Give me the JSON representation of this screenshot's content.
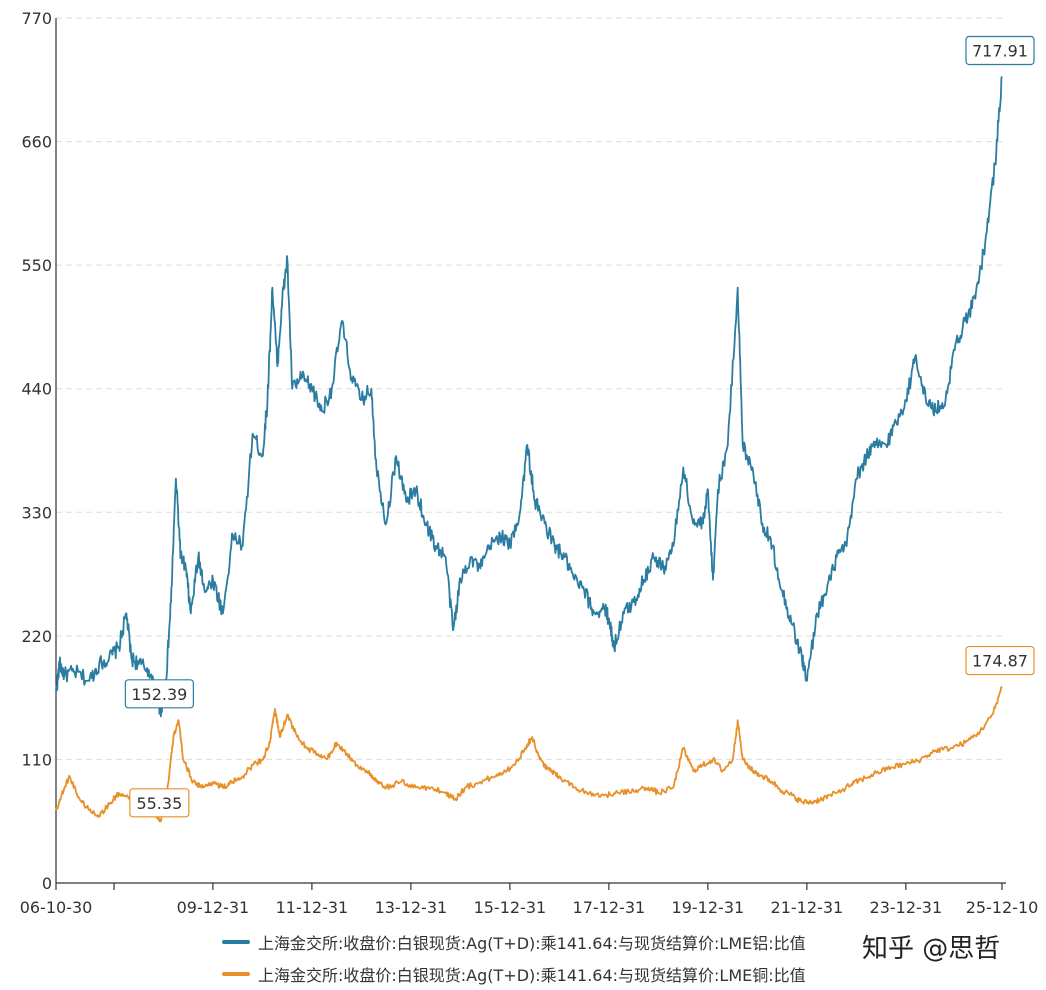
{
  "chart_data": {
    "type": "line",
    "title": "",
    "xlabel": "",
    "ylabel": "",
    "ylim": [
      0,
      770
    ],
    "yticks": [
      0,
      110,
      220,
      330,
      440,
      550,
      660,
      770
    ],
    "x_range": [
      "2006-10-30",
      "2025-12-10"
    ],
    "xticks": [
      {
        "label": "06-10-30",
        "date": "2006-10-30"
      },
      {
        "label": "",
        "date": "2008-01-01"
      },
      {
        "label": "09-12-31",
        "date": "2009-12-31"
      },
      {
        "label": "11-12-31",
        "date": "2011-12-31"
      },
      {
        "label": "13-12-31",
        "date": "2013-12-31"
      },
      {
        "label": "15-12-31",
        "date": "2015-12-31"
      },
      {
        "label": "17-12-31",
        "date": "2017-12-31"
      },
      {
        "label": "19-12-31",
        "date": "2019-12-31"
      },
      {
        "label": "21-12-31",
        "date": "2021-12-31"
      },
      {
        "label": "23-12-31",
        "date": "2023-12-31"
      },
      {
        "label": "25-12-10",
        "date": "2025-12-10"
      }
    ],
    "grid": true,
    "legend_position": "bottom",
    "series": [
      {
        "name": "上海金交所:收盘价:白银现货:Ag(T+D):乘141.64:与现货结算价:LME铝:比值",
        "color": "#2a7ca1",
        "points": [
          [
            2006.83,
            170
          ],
          [
            2006.9,
            195
          ],
          [
            2007.0,
            185
          ],
          [
            2007.2,
            188
          ],
          [
            2007.5,
            180
          ],
          [
            2007.7,
            195
          ],
          [
            2007.9,
            200
          ],
          [
            2008.1,
            210
          ],
          [
            2008.25,
            240
          ],
          [
            2008.35,
            200
          ],
          [
            2008.5,
            195
          ],
          [
            2008.7,
            190
          ],
          [
            2008.9,
            160
          ],
          [
            2008.95,
            152.39
          ],
          [
            2009.05,
            180
          ],
          [
            2009.15,
            250
          ],
          [
            2009.25,
            360
          ],
          [
            2009.35,
            290
          ],
          [
            2009.45,
            280
          ],
          [
            2009.55,
            240
          ],
          [
            2009.7,
            290
          ],
          [
            2009.85,
            260
          ],
          [
            2010.0,
            270
          ],
          [
            2010.2,
            240
          ],
          [
            2010.4,
            310
          ],
          [
            2010.6,
            300
          ],
          [
            2010.8,
            400
          ],
          [
            2011.0,
            380
          ],
          [
            2011.1,
            430
          ],
          [
            2011.2,
            530
          ],
          [
            2011.3,
            460
          ],
          [
            2011.4,
            520
          ],
          [
            2011.5,
            555
          ],
          [
            2011.6,
            440
          ],
          [
            2011.8,
            450
          ],
          [
            2012.0,
            440
          ],
          [
            2012.2,
            420
          ],
          [
            2012.4,
            440
          ],
          [
            2012.6,
            500
          ],
          [
            2012.8,
            450
          ],
          [
            2013.0,
            430
          ],
          [
            2013.2,
            440
          ],
          [
            2013.3,
            370
          ],
          [
            2013.5,
            320
          ],
          [
            2013.7,
            380
          ],
          [
            2013.9,
            340
          ],
          [
            2014.1,
            350
          ],
          [
            2014.3,
            320
          ],
          [
            2014.5,
            300
          ],
          [
            2014.7,
            290
          ],
          [
            2014.85,
            225
          ],
          [
            2015.0,
            270
          ],
          [
            2015.2,
            290
          ],
          [
            2015.4,
            280
          ],
          [
            2015.6,
            300
          ],
          [
            2015.8,
            310
          ],
          [
            2016.0,
            300
          ],
          [
            2016.2,
            330
          ],
          [
            2016.35,
            390
          ],
          [
            2016.5,
            340
          ],
          [
            2016.7,
            320
          ],
          [
            2016.9,
            300
          ],
          [
            2017.1,
            290
          ],
          [
            2017.3,
            270
          ],
          [
            2017.5,
            260
          ],
          [
            2017.7,
            240
          ],
          [
            2017.9,
            245
          ],
          [
            2018.0,
            235
          ],
          [
            2018.1,
            210
          ],
          [
            2018.3,
            240
          ],
          [
            2018.5,
            250
          ],
          [
            2018.7,
            270
          ],
          [
            2018.9,
            290
          ],
          [
            2019.1,
            280
          ],
          [
            2019.3,
            300
          ],
          [
            2019.5,
            370
          ],
          [
            2019.7,
            320
          ],
          [
            2019.9,
            320
          ],
          [
            2020.0,
            350
          ],
          [
            2020.1,
            270
          ],
          [
            2020.2,
            350
          ],
          [
            2020.4,
            390
          ],
          [
            2020.6,
            530
          ],
          [
            2020.7,
            390
          ],
          [
            2020.9,
            370
          ],
          [
            2021.1,
            320
          ],
          [
            2021.3,
            300
          ],
          [
            2021.5,
            260
          ],
          [
            2021.7,
            230
          ],
          [
            2021.9,
            200
          ],
          [
            2022.0,
            180
          ],
          [
            2022.2,
            240
          ],
          [
            2022.4,
            260
          ],
          [
            2022.6,
            290
          ],
          [
            2022.8,
            300
          ],
          [
            2023.0,
            360
          ],
          [
            2023.2,
            380
          ],
          [
            2023.4,
            390
          ],
          [
            2023.6,
            390
          ],
          [
            2023.8,
            410
          ],
          [
            2024.0,
            430
          ],
          [
            2024.2,
            470
          ],
          [
            2024.4,
            430
          ],
          [
            2024.6,
            420
          ],
          [
            2024.8,
            430
          ],
          [
            2025.0,
            480
          ],
          [
            2025.2,
            500
          ],
          [
            2025.4,
            520
          ],
          [
            2025.6,
            570
          ],
          [
            2025.8,
            640
          ],
          [
            2025.94,
            717.91
          ]
        ],
        "callout": {
          "label": "152.39",
          "value": 152.39,
          "date": "2008-12-01"
        },
        "end_callout": {
          "label": "717.91",
          "value": 717.91,
          "date": "2025-12-10"
        }
      },
      {
        "name": "上海金交所:收盘价:白银现货:Ag(T+D):乘141.64:与现货结算价:LME铜:比值",
        "color": "#e8902a",
        "points": [
          [
            2006.83,
            65
          ],
          [
            2007.0,
            85
          ],
          [
            2007.1,
            95
          ],
          [
            2007.3,
            75
          ],
          [
            2007.5,
            65
          ],
          [
            2007.7,
            60
          ],
          [
            2007.9,
            70
          ],
          [
            2008.1,
            80
          ],
          [
            2008.3,
            75
          ],
          [
            2008.5,
            70
          ],
          [
            2008.7,
            65
          ],
          [
            2008.9,
            58
          ],
          [
            2008.95,
            55.35
          ],
          [
            2009.1,
            90
          ],
          [
            2009.2,
            130
          ],
          [
            2009.3,
            145
          ],
          [
            2009.4,
            110
          ],
          [
            2009.6,
            90
          ],
          [
            2009.8,
            85
          ],
          [
            2010.0,
            90
          ],
          [
            2010.2,
            85
          ],
          [
            2010.4,
            90
          ],
          [
            2010.6,
            95
          ],
          [
            2010.8,
            105
          ],
          [
            2011.0,
            110
          ],
          [
            2011.15,
            125
          ],
          [
            2011.25,
            155
          ],
          [
            2011.35,
            130
          ],
          [
            2011.5,
            150
          ],
          [
            2011.7,
            130
          ],
          [
            2011.9,
            120
          ],
          [
            2012.1,
            115
          ],
          [
            2012.3,
            110
          ],
          [
            2012.5,
            125
          ],
          [
            2012.7,
            115
          ],
          [
            2012.9,
            105
          ],
          [
            2013.1,
            100
          ],
          [
            2013.3,
            90
          ],
          [
            2013.5,
            85
          ],
          [
            2013.8,
            90
          ],
          [
            2014.1,
            85
          ],
          [
            2014.4,
            85
          ],
          [
            2014.7,
            80
          ],
          [
            2014.9,
            75
          ],
          [
            2015.1,
            85
          ],
          [
            2015.4,
            90
          ],
          [
            2015.7,
            95
          ],
          [
            2015.9,
            100
          ],
          [
            2016.1,
            105
          ],
          [
            2016.3,
            120
          ],
          [
            2016.45,
            130
          ],
          [
            2016.6,
            110
          ],
          [
            2016.8,
            100
          ],
          [
            2017.0,
            95
          ],
          [
            2017.3,
            85
          ],
          [
            2017.6,
            80
          ],
          [
            2017.9,
            78
          ],
          [
            2018.2,
            80
          ],
          [
            2018.5,
            82
          ],
          [
            2018.8,
            85
          ],
          [
            2019.0,
            80
          ],
          [
            2019.3,
            85
          ],
          [
            2019.5,
            120
          ],
          [
            2019.7,
            100
          ],
          [
            2019.9,
            105
          ],
          [
            2020.1,
            110
          ],
          [
            2020.3,
            100
          ],
          [
            2020.5,
            110
          ],
          [
            2020.6,
            145
          ],
          [
            2020.7,
            110
          ],
          [
            2020.9,
            100
          ],
          [
            2021.1,
            95
          ],
          [
            2021.3,
            90
          ],
          [
            2021.5,
            82
          ],
          [
            2021.7,
            78
          ],
          [
            2021.9,
            72
          ],
          [
            2022.1,
            72
          ],
          [
            2022.3,
            75
          ],
          [
            2022.6,
            80
          ],
          [
            2022.9,
            88
          ],
          [
            2023.1,
            92
          ],
          [
            2023.4,
            98
          ],
          [
            2023.7,
            103
          ],
          [
            2024.0,
            106
          ],
          [
            2024.3,
            110
          ],
          [
            2024.6,
            118
          ],
          [
            2024.9,
            120
          ],
          [
            2025.2,
            125
          ],
          [
            2025.5,
            135
          ],
          [
            2025.75,
            150
          ],
          [
            2025.94,
            174.87
          ]
        ],
        "callout": {
          "label": "55.35",
          "value": 55.35,
          "date": "2008-12-01"
        },
        "end_callout": {
          "label": "174.87",
          "value": 174.87,
          "date": "2025-12-10"
        }
      }
    ]
  },
  "watermark": "知乎 @思哲"
}
